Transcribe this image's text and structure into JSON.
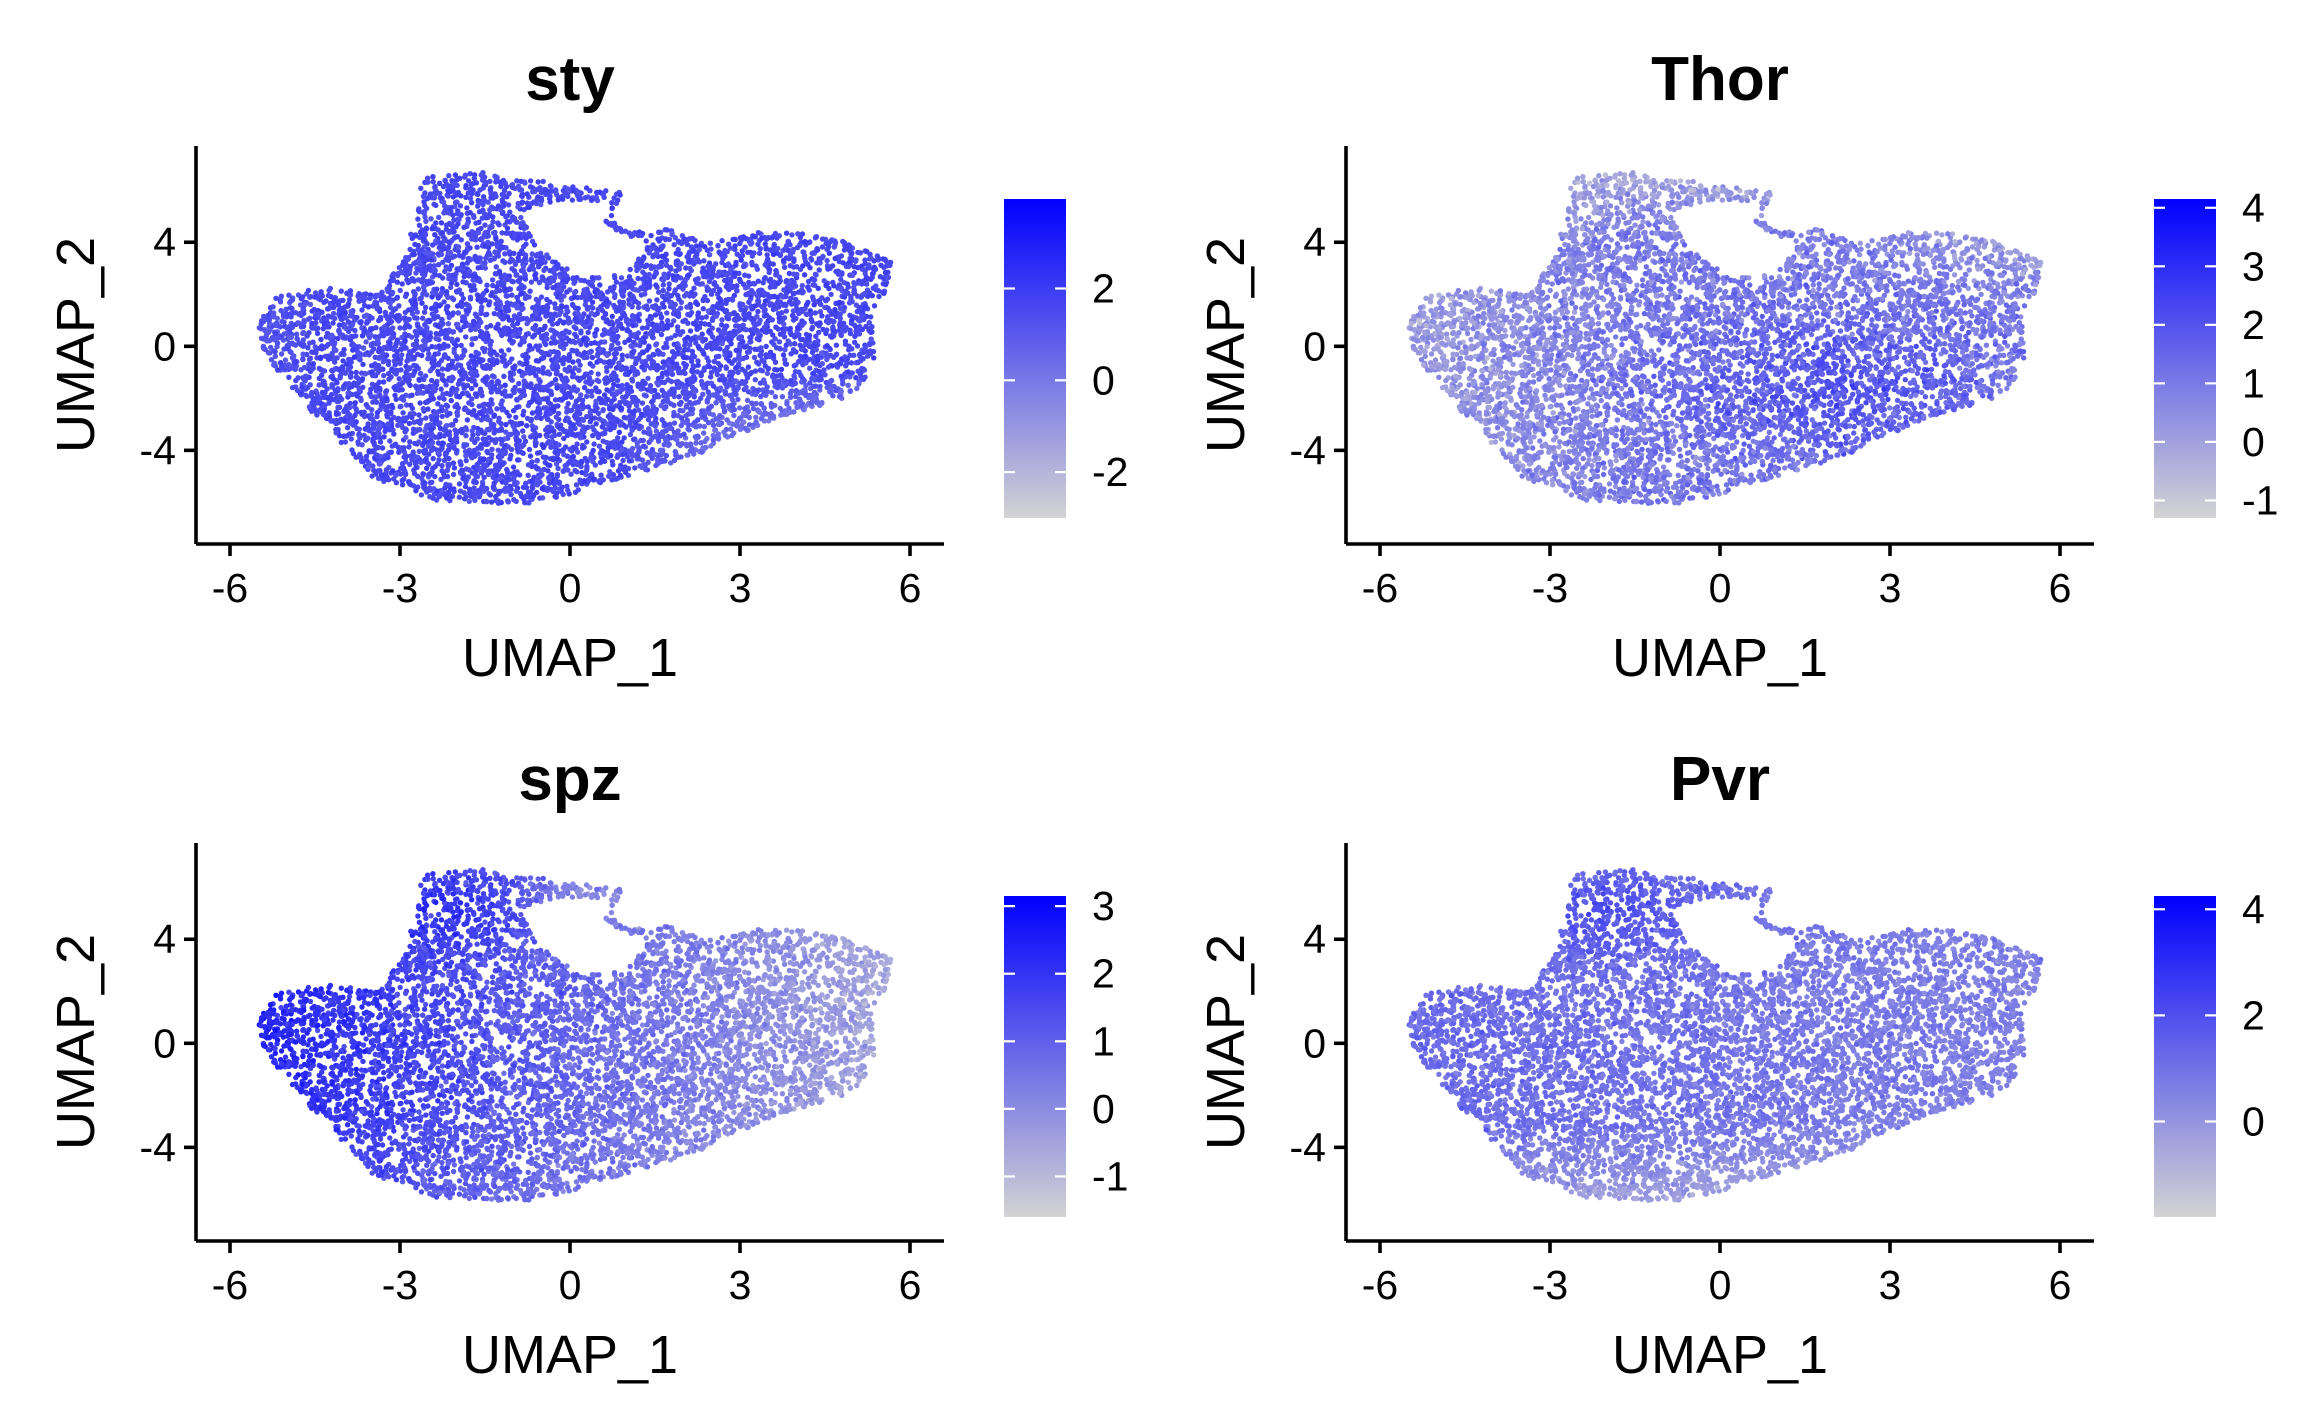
{
  "chart_data": [
    {
      "type": "scatter",
      "title": "sty",
      "xlabel": "UMAP_1",
      "ylabel": "UMAP_2",
      "xlim": [
        -6.6,
        6.6
      ],
      "ylim": [
        -7.6,
        7.7
      ],
      "xticks": [
        -6,
        -3,
        0,
        3,
        6
      ],
      "yticks": [
        -4,
        0,
        4
      ],
      "grid": false,
      "legend": "right colorbar",
      "color_scale": {
        "low": "#d3d3d3",
        "high": "#0000ff",
        "min": -3.0,
        "max": 3.95,
        "ticks": [
          -2,
          0,
          2
        ]
      },
      "expression_pattern": "uniformly high; slightly lower at the bottom-right and far-left edge",
      "point_count_estimate": 6500
    },
    {
      "type": "scatter",
      "title": "Thor",
      "xlabel": "UMAP_1",
      "ylabel": "UMAP_2",
      "xlim": [
        -6.6,
        6.6
      ],
      "ylim": [
        -7.6,
        7.7
      ],
      "xticks": [
        -6,
        -3,
        0,
        3,
        6
      ],
      "yticks": [
        -4,
        0,
        4
      ],
      "grid": false,
      "legend": "right colorbar",
      "color_scale": {
        "low": "#d3d3d3",
        "high": "#0000ff",
        "min": -1.3,
        "max": 4.15,
        "ticks": [
          -1,
          0,
          1,
          2,
          3,
          4
        ]
      },
      "expression_pattern": "low on the left and top-right; high in the lower-center-right",
      "point_count_estimate": 6500
    },
    {
      "type": "scatter",
      "title": "spz",
      "xlabel": "UMAP_1",
      "ylabel": "UMAP_2",
      "xlim": [
        -6.6,
        6.6
      ],
      "ylim": [
        -7.6,
        7.7
      ],
      "xticks": [
        -6,
        -3,
        0,
        3,
        6
      ],
      "yticks": [
        -4,
        0,
        4
      ],
      "grid": false,
      "legend": "right colorbar",
      "color_scale": {
        "low": "#d3d3d3",
        "high": "#0000ff",
        "min": -1.6,
        "max": 3.15,
        "ticks": [
          -1,
          0,
          1,
          2,
          3
        ]
      },
      "expression_pattern": "high on the left and upper-left lobe; low on the right and bottom",
      "point_count_estimate": 6500
    },
    {
      "type": "scatter",
      "title": "Pvr",
      "xlabel": "UMAP_1",
      "ylabel": "UMAP_2",
      "xlim": [
        -6.6,
        6.6
      ],
      "ylim": [
        -7.6,
        7.7
      ],
      "xticks": [
        -6,
        -3,
        0,
        3,
        6
      ],
      "yticks": [
        -4,
        0,
        4
      ],
      "grid": false,
      "legend": "right colorbar",
      "color_scale": {
        "low": "#d3d3d3",
        "high": "#0000ff",
        "min": -1.8,
        "max": 4.25,
        "ticks": [
          0,
          2,
          4
        ]
      },
      "expression_pattern": "moderate overall; highest in the upper-left lobe; lower at the bottom",
      "point_count_estimate": 6500
    }
  ],
  "cluster_outline": [
    [
      -5.5,
      0.8
    ],
    [
      -5.2,
      1.9
    ],
    [
      -4.3,
      2.3
    ],
    [
      -3.4,
      2.0
    ],
    [
      -2.9,
      3.4
    ],
    [
      -2.6,
      6.5
    ],
    [
      -1.6,
      6.7
    ],
    [
      -1.0,
      6.5
    ],
    [
      0.3,
      6.1
    ],
    [
      0.9,
      6.0
    ],
    [
      0.8,
      4.8
    ],
    [
      1.3,
      4.4
    ],
    [
      1.9,
      4.6
    ],
    [
      2.3,
      4.0
    ],
    [
      3.4,
      4.4
    ],
    [
      4.5,
      4.3
    ],
    [
      5.7,
      3.3
    ],
    [
      5.6,
      2.2
    ],
    [
      5.3,
      1.3
    ],
    [
      5.4,
      -0.6
    ],
    [
      5.0,
      -1.9
    ],
    [
      3.6,
      -2.8
    ],
    [
      2.2,
      -4.2
    ],
    [
      1.0,
      -5.0
    ],
    [
      0.3,
      -5.5
    ],
    [
      -0.7,
      -6.1
    ],
    [
      -2.5,
      -5.9
    ],
    [
      -3.5,
      -5.0
    ],
    [
      -4.6,
      -2.4
    ],
    [
      -5.4,
      -0.3
    ]
  ],
  "cluster_hole": [
    [
      -0.9,
      5.2
    ],
    [
      -0.2,
      5.6
    ],
    [
      0.7,
      5.6
    ],
    [
      0.6,
      4.6
    ],
    [
      1.4,
      3.9
    ],
    [
      1.0,
      2.8
    ],
    [
      0.2,
      2.6
    ],
    [
      -0.6,
      3.8
    ]
  ]
}
